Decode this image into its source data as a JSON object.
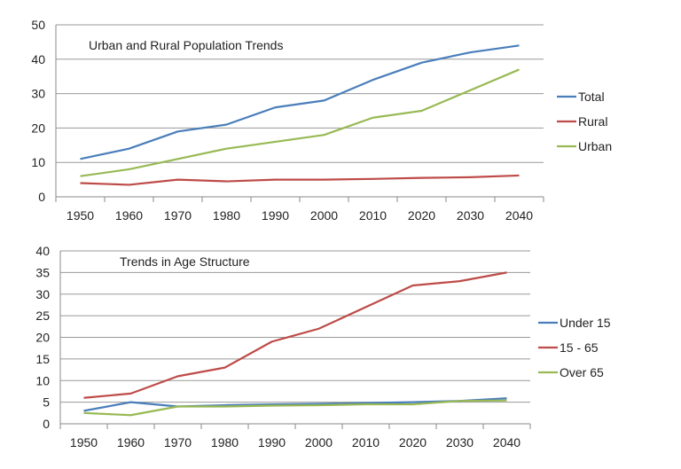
{
  "chart_data": [
    {
      "type": "line",
      "title": "Urban and Rural Population Trends",
      "categories": [
        "1950",
        "1960",
        "1970",
        "1980",
        "1990",
        "2000",
        "2010",
        "2020",
        "2030",
        "2040"
      ],
      "ylim": [
        0,
        50
      ],
      "yticks": [
        0,
        10,
        20,
        30,
        40,
        50
      ],
      "grid": true,
      "legend": "right",
      "series": [
        {
          "name": "Total",
          "color": "#4a7ebb",
          "values": [
            11,
            14,
            19,
            21,
            26,
            28,
            34,
            39,
            42,
            44
          ]
        },
        {
          "name": "Rural",
          "color": "#be4b48",
          "values": [
            4,
            3.5,
            5,
            4.5,
            5,
            5,
            5.2,
            5.5,
            5.7,
            6.2
          ]
        },
        {
          "name": "Urban",
          "color": "#98b954",
          "values": [
            6,
            8,
            11,
            14,
            16,
            18,
            23,
            25,
            31,
            37
          ]
        }
      ]
    },
    {
      "type": "line",
      "title": "Trends in Age Structure",
      "categories": [
        "1950",
        "1960",
        "1970",
        "1980",
        "1990",
        "2000",
        "2010",
        "2020",
        "2030",
        "2040"
      ],
      "ylim": [
        0,
        40
      ],
      "yticks": [
        0,
        5,
        10,
        15,
        20,
        25,
        30,
        35,
        40
      ],
      "grid": true,
      "legend": "right",
      "series": [
        {
          "name": "Under 15",
          "color": "#4a7ebb",
          "values": [
            3,
            5,
            4,
            4.3,
            4.5,
            4.6,
            4.8,
            5,
            5.3,
            5.9
          ]
        },
        {
          "name": "15 - 65",
          "color": "#be4b48",
          "values": [
            6,
            7,
            11,
            13,
            19,
            22,
            27,
            32,
            33,
            35
          ]
        },
        {
          "name": "Over 65",
          "color": "#98b954",
          "values": [
            2.5,
            2,
            4,
            4,
            4.2,
            4.3,
            4.5,
            4.5,
            5.3,
            5.4
          ]
        }
      ]
    }
  ]
}
